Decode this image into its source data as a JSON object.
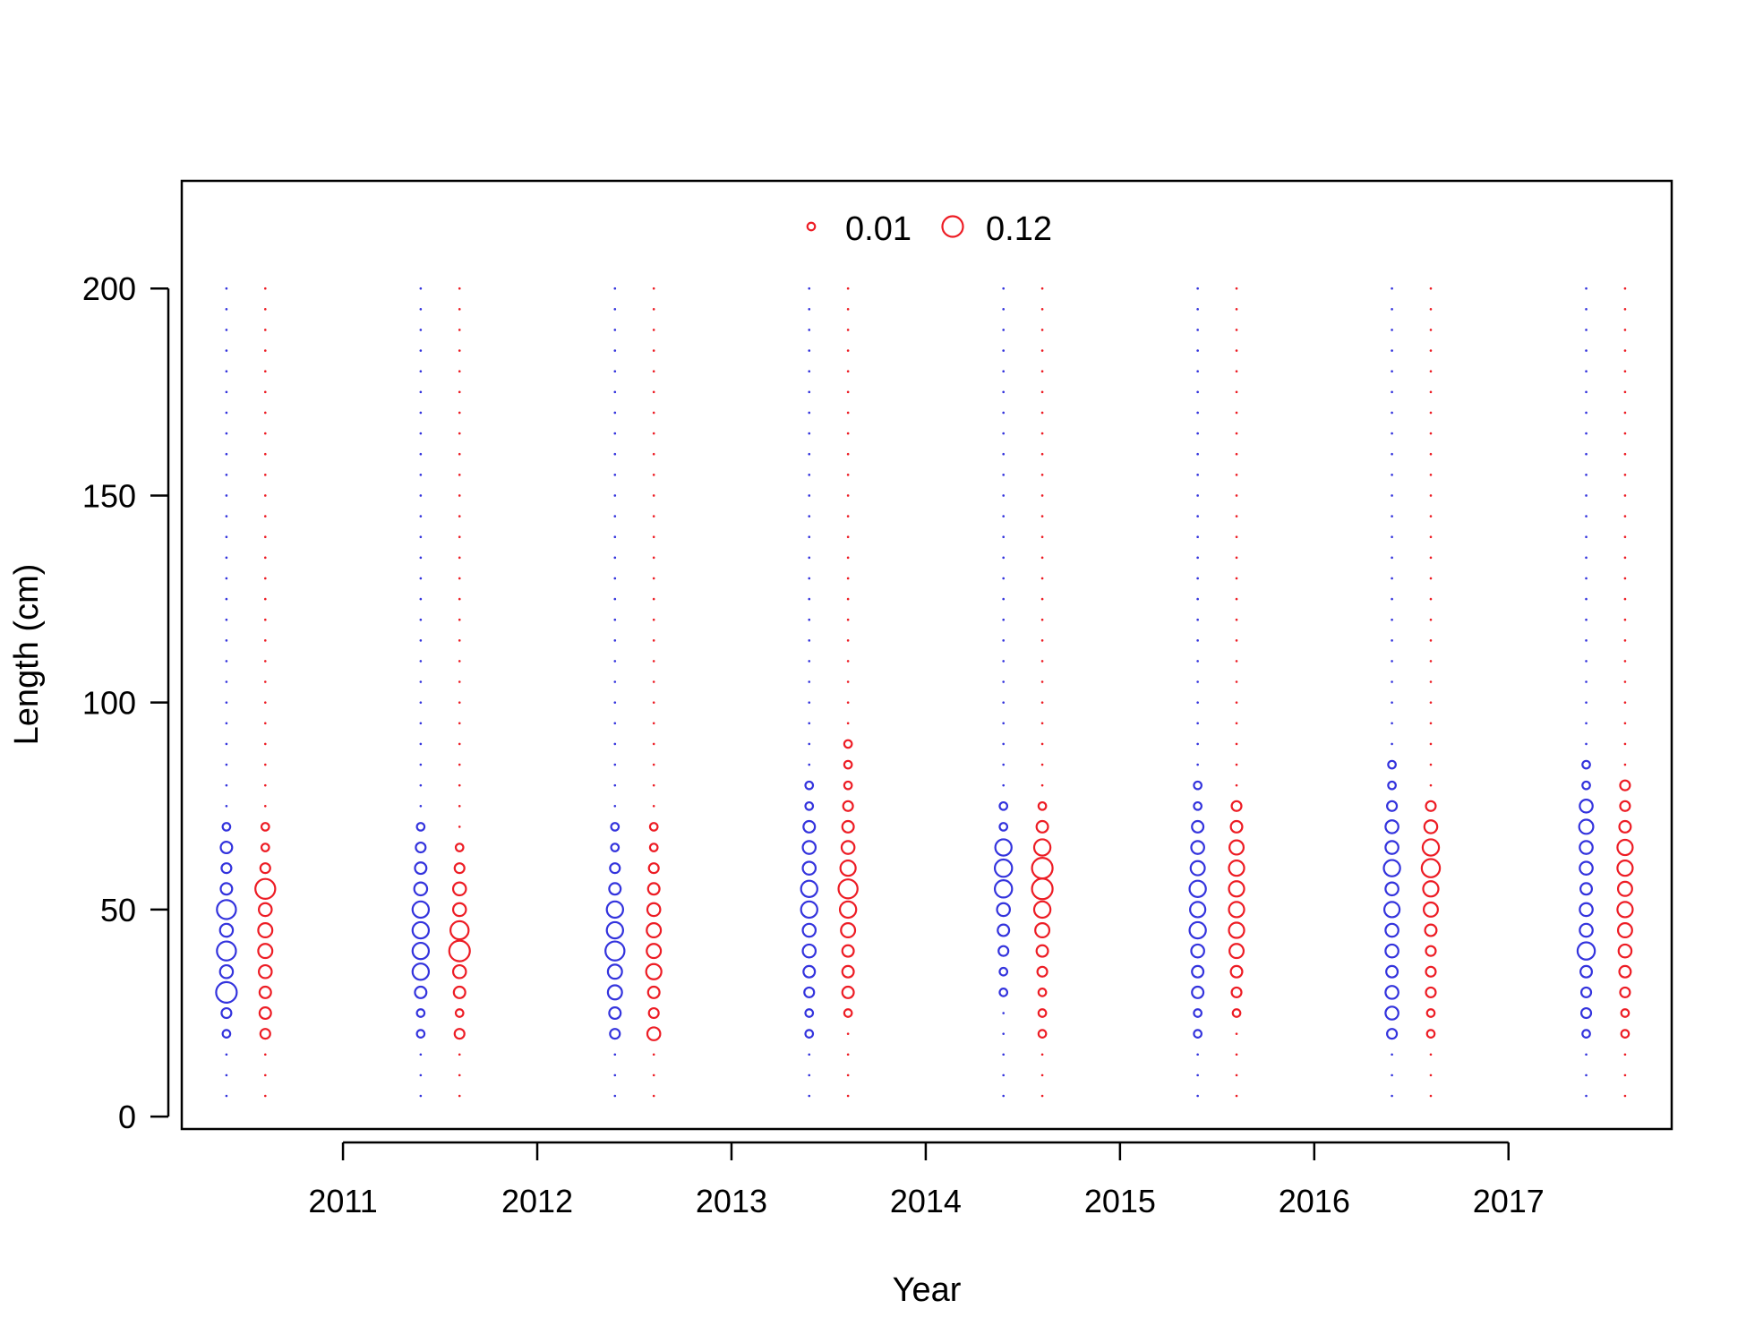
{
  "chart_data": {
    "type": "bubble-scatter",
    "title": "",
    "xlabel": "Year",
    "ylabel": "Length (cm)",
    "xlim": [
      2010.17,
      2017.84
    ],
    "ylim": [
      -3,
      226
    ],
    "x_ticks": [
      2011,
      2012,
      2013,
      2014,
      2015,
      2016,
      2017
    ],
    "y_ticks": [
      0,
      50,
      100,
      150,
      200
    ],
    "length_bins": [
      5,
      10,
      15,
      20,
      25,
      30,
      35,
      40,
      45,
      50,
      55,
      60,
      65,
      70,
      75,
      80,
      85,
      90,
      95,
      100,
      105,
      110,
      115,
      120,
      125,
      130,
      135,
      140,
      145,
      150,
      155,
      160,
      165,
      170,
      175,
      180,
      185,
      190,
      195,
      200
    ],
    "legend": {
      "placement": "top-center",
      "entries": [
        {
          "label": "0.01",
          "value": 0.01
        },
        {
          "label": "0.12",
          "value": 0.12
        }
      ],
      "color": "#ED1C24"
    },
    "series": [
      {
        "color": "#3333DD",
        "x_offset": -0.1,
        "years": [
          {
            "year": 2010.5,
            "values": {
              "20": 0.01,
              "25": 0.02,
              "30": 0.12,
              "35": 0.04,
              "40": 0.1,
              "45": 0.04,
              "50": 0.1,
              "55": 0.03,
              "60": 0.02,
              "65": 0.03,
              "70": 0.01
            }
          },
          {
            "year": 2011.5,
            "values": {
              "20": 0.01,
              "25": 0.01,
              "30": 0.03,
              "35": 0.07,
              "40": 0.07,
              "45": 0.07,
              "50": 0.07,
              "55": 0.04,
              "60": 0.03,
              "65": 0.02,
              "70": 0.01
            }
          },
          {
            "year": 2012.5,
            "values": {
              "20": 0.02,
              "25": 0.03,
              "30": 0.05,
              "35": 0.05,
              "40": 0.1,
              "45": 0.07,
              "50": 0.07,
              "55": 0.03,
              "60": 0.02,
              "65": 0.01,
              "70": 0.01
            }
          },
          {
            "year": 2013.5,
            "values": {
              "20": 0.01,
              "25": 0.01,
              "30": 0.02,
              "35": 0.03,
              "40": 0.04,
              "45": 0.04,
              "50": 0.07,
              "55": 0.07,
              "60": 0.04,
              "65": 0.04,
              "70": 0.03,
              "75": 0.01,
              "80": 0.01
            }
          },
          {
            "year": 2014.5,
            "values": {
              "30": 0.01,
              "35": 0.01,
              "40": 0.02,
              "45": 0.03,
              "50": 0.04,
              "55": 0.08,
              "60": 0.08,
              "65": 0.07,
              "70": 0.01,
              "75": 0.01
            }
          },
          {
            "year": 2015.5,
            "values": {
              "20": 0.01,
              "25": 0.01,
              "30": 0.03,
              "35": 0.03,
              "40": 0.04,
              "45": 0.07,
              "50": 0.06,
              "55": 0.07,
              "60": 0.05,
              "65": 0.04,
              "70": 0.03,
              "75": 0.01,
              "80": 0.01
            }
          },
          {
            "year": 2016.5,
            "values": {
              "20": 0.02,
              "25": 0.04,
              "30": 0.04,
              "35": 0.03,
              "40": 0.04,
              "45": 0.04,
              "50": 0.06,
              "55": 0.04,
              "60": 0.07,
              "65": 0.04,
              "70": 0.04,
              "75": 0.02,
              "80": 0.01,
              "85": 0.01
            }
          },
          {
            "year": 2017.5,
            "values": {
              "20": 0.01,
              "25": 0.02,
              "30": 0.02,
              "35": 0.03,
              "40": 0.08,
              "45": 0.04,
              "50": 0.04,
              "55": 0.03,
              "60": 0.04,
              "65": 0.04,
              "70": 0.05,
              "75": 0.04,
              "80": 0.01,
              "85": 0.01
            }
          }
        ]
      },
      {
        "color": "#ED1C24",
        "x_offset": 0.1,
        "years": [
          {
            "year": 2010.5,
            "values": {
              "20": 0.02,
              "25": 0.03,
              "30": 0.03,
              "35": 0.04,
              "40": 0.05,
              "45": 0.05,
              "50": 0.04,
              "55": 0.11,
              "60": 0.02,
              "65": 0.01,
              "70": 0.01
            }
          },
          {
            "year": 2011.5,
            "values": {
              "20": 0.02,
              "25": 0.01,
              "30": 0.03,
              "35": 0.04,
              "40": 0.12,
              "45": 0.09,
              "50": 0.04,
              "55": 0.04,
              "60": 0.02,
              "65": 0.01
            }
          },
          {
            "year": 2012.5,
            "values": {
              "20": 0.04,
              "25": 0.02,
              "30": 0.03,
              "35": 0.06,
              "40": 0.05,
              "45": 0.05,
              "50": 0.04,
              "55": 0.03,
              "60": 0.02,
              "65": 0.01,
              "70": 0.01
            }
          },
          {
            "year": 2013.5,
            "values": {
              "25": 0.01,
              "30": 0.03,
              "35": 0.03,
              "40": 0.03,
              "45": 0.05,
              "50": 0.07,
              "55": 0.1,
              "60": 0.06,
              "65": 0.04,
              "70": 0.03,
              "75": 0.02,
              "80": 0.01,
              "85": 0.01,
              "90": 0.01
            }
          },
          {
            "year": 2014.5,
            "values": {
              "20": 0.01,
              "25": 0.01,
              "30": 0.01,
              "35": 0.02,
              "40": 0.03,
              "45": 0.05,
              "50": 0.07,
              "55": 0.12,
              "60": 0.12,
              "65": 0.07,
              "70": 0.03,
              "75": 0.01
            }
          },
          {
            "year": 2015.5,
            "values": {
              "25": 0.01,
              "30": 0.02,
              "35": 0.03,
              "40": 0.05,
              "45": 0.06,
              "50": 0.06,
              "55": 0.06,
              "60": 0.06,
              "65": 0.05,
              "70": 0.03,
              "75": 0.02
            }
          },
          {
            "year": 2016.5,
            "values": {
              "20": 0.01,
              "25": 0.01,
              "30": 0.02,
              "35": 0.02,
              "40": 0.02,
              "45": 0.03,
              "50": 0.05,
              "55": 0.06,
              "60": 0.09,
              "65": 0.07,
              "70": 0.04,
              "75": 0.02
            }
          },
          {
            "year": 2017.5,
            "values": {
              "20": 0.01,
              "25": 0.01,
              "30": 0.02,
              "35": 0.03,
              "40": 0.04,
              "45": 0.05,
              "50": 0.06,
              "55": 0.05,
              "60": 0.06,
              "65": 0.06,
              "70": 0.03,
              "75": 0.02,
              "80": 0.02
            }
          }
        ]
      }
    ]
  }
}
